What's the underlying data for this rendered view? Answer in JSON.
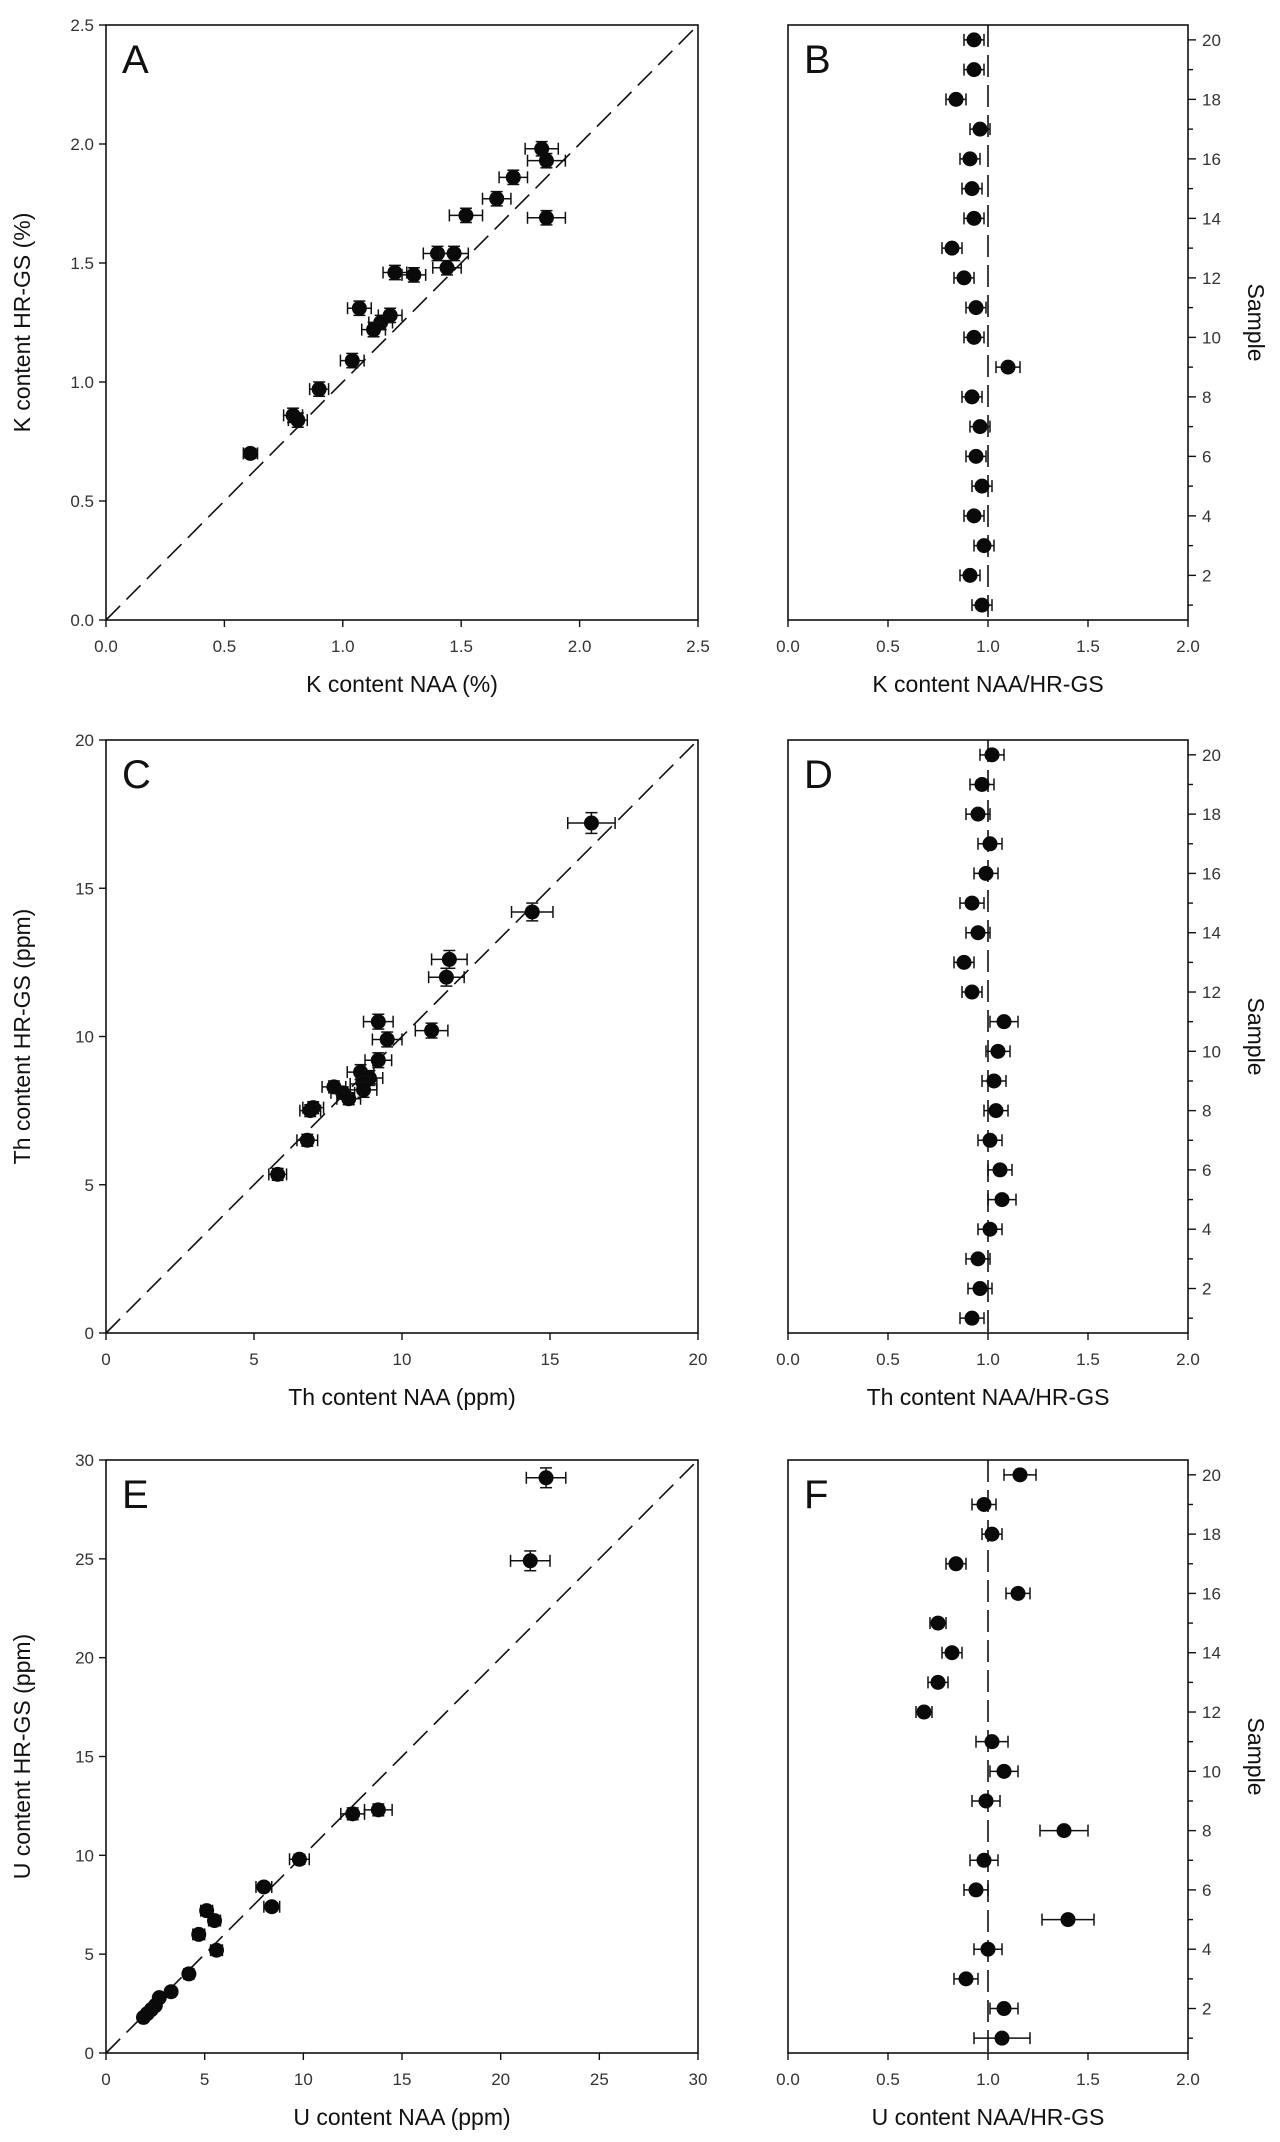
{
  "chart_data": [
    {
      "id": "A",
      "type": "scatter",
      "panel_label": "A",
      "xlabel": "K content NAA (%)",
      "ylabel": "K content HR-GS (%)",
      "xlim": [
        0,
        2.5
      ],
      "ylim": [
        0,
        2.5
      ],
      "xticks": [
        "0.0",
        "0.5",
        "1.0",
        "1.5",
        "2.0",
        "2.5"
      ],
      "yticks": [
        "0.0",
        "0.5",
        "1.0",
        "1.5",
        "2.0",
        "2.5"
      ],
      "reference_line": "1:1 dashed",
      "points": [
        {
          "x": 1.84,
          "y": 1.98,
          "xerr": 0.07,
          "yerr": 0.03
        },
        {
          "x": 1.86,
          "y": 1.93,
          "xerr": 0.08,
          "yerr": 0.03
        },
        {
          "x": 1.72,
          "y": 1.86,
          "xerr": 0.06,
          "yerr": 0.03
        },
        {
          "x": 1.65,
          "y": 1.77,
          "xerr": 0.06,
          "yerr": 0.03
        },
        {
          "x": 1.52,
          "y": 1.7,
          "xerr": 0.07,
          "yerr": 0.03
        },
        {
          "x": 1.86,
          "y": 1.69,
          "xerr": 0.08,
          "yerr": 0.03
        },
        {
          "x": 1.4,
          "y": 1.54,
          "xerr": 0.06,
          "yerr": 0.03
        },
        {
          "x": 1.47,
          "y": 1.54,
          "xerr": 0.06,
          "yerr": 0.03
        },
        {
          "x": 1.44,
          "y": 1.48,
          "xerr": 0.06,
          "yerr": 0.03
        },
        {
          "x": 1.22,
          "y": 1.46,
          "xerr": 0.05,
          "yerr": 0.03
        },
        {
          "x": 1.3,
          "y": 1.45,
          "xerr": 0.05,
          "yerr": 0.03
        },
        {
          "x": 1.07,
          "y": 1.31,
          "xerr": 0.05,
          "yerr": 0.03
        },
        {
          "x": 1.2,
          "y": 1.28,
          "xerr": 0.05,
          "yerr": 0.03
        },
        {
          "x": 1.16,
          "y": 1.25,
          "xerr": 0.05,
          "yerr": 0.03
        },
        {
          "x": 1.13,
          "y": 1.22,
          "xerr": 0.05,
          "yerr": 0.03
        },
        {
          "x": 1.04,
          "y": 1.09,
          "xerr": 0.05,
          "yerr": 0.03
        },
        {
          "x": 0.9,
          "y": 0.97,
          "xerr": 0.04,
          "yerr": 0.03
        },
        {
          "x": 0.79,
          "y": 0.86,
          "xerr": 0.04,
          "yerr": 0.03
        },
        {
          "x": 0.81,
          "y": 0.84,
          "xerr": 0.04,
          "yerr": 0.03
        },
        {
          "x": 0.61,
          "y": 0.7,
          "xerr": 0.03,
          "yerr": 0.02
        }
      ]
    },
    {
      "id": "B",
      "type": "scatter",
      "panel_label": "B",
      "xlabel": "K content NAA/HR-GS",
      "ylabel": "Sample",
      "xlim": [
        0,
        2.0
      ],
      "ylim": [
        0.5,
        20.5
      ],
      "xticks": [
        "0.0",
        "0.5",
        "1.0",
        "1.5",
        "2.0"
      ],
      "yticks": [
        "2",
        "4",
        "6",
        "8",
        "10",
        "12",
        "14",
        "16",
        "18",
        "20"
      ],
      "reference_line": "vertical dashed at 1.0",
      "points": [
        {
          "sample": 1,
          "ratio": 0.97,
          "err": 0.05
        },
        {
          "sample": 2,
          "ratio": 0.91,
          "err": 0.05
        },
        {
          "sample": 3,
          "ratio": 0.98,
          "err": 0.05
        },
        {
          "sample": 4,
          "ratio": 0.93,
          "err": 0.05
        },
        {
          "sample": 5,
          "ratio": 0.97,
          "err": 0.05
        },
        {
          "sample": 6,
          "ratio": 0.94,
          "err": 0.05
        },
        {
          "sample": 7,
          "ratio": 0.96,
          "err": 0.05
        },
        {
          "sample": 8,
          "ratio": 0.92,
          "err": 0.05
        },
        {
          "sample": 9,
          "ratio": 1.1,
          "err": 0.06
        },
        {
          "sample": 10,
          "ratio": 0.93,
          "err": 0.05
        },
        {
          "sample": 11,
          "ratio": 0.94,
          "err": 0.05
        },
        {
          "sample": 12,
          "ratio": 0.88,
          "err": 0.05
        },
        {
          "sample": 13,
          "ratio": 0.82,
          "err": 0.05
        },
        {
          "sample": 14,
          "ratio": 0.93,
          "err": 0.05
        },
        {
          "sample": 15,
          "ratio": 0.92,
          "err": 0.05
        },
        {
          "sample": 16,
          "ratio": 0.91,
          "err": 0.05
        },
        {
          "sample": 17,
          "ratio": 0.96,
          "err": 0.05
        },
        {
          "sample": 18,
          "ratio": 0.84,
          "err": 0.05
        },
        {
          "sample": 19,
          "ratio": 0.93,
          "err": 0.05
        },
        {
          "sample": 20,
          "ratio": 0.93,
          "err": 0.05
        }
      ]
    },
    {
      "id": "C",
      "type": "scatter",
      "panel_label": "C",
      "xlabel": "Th content NAA (ppm)",
      "ylabel": "Th content HR-GS (ppm)",
      "xlim": [
        0,
        20
      ],
      "ylim": [
        0,
        20
      ],
      "xticks": [
        "0",
        "5",
        "10",
        "15",
        "20"
      ],
      "yticks": [
        "0",
        "5",
        "10",
        "15",
        "20"
      ],
      "reference_line": "1:1 dashed",
      "points": [
        {
          "x": 16.4,
          "y": 17.2,
          "xerr": 0.8,
          "yerr": 0.35
        },
        {
          "x": 14.4,
          "y": 14.2,
          "xerr": 0.7,
          "yerr": 0.3
        },
        {
          "x": 11.6,
          "y": 12.6,
          "xerr": 0.6,
          "yerr": 0.3
        },
        {
          "x": 11.5,
          "y": 12.0,
          "xerr": 0.6,
          "yerr": 0.3
        },
        {
          "x": 9.2,
          "y": 10.5,
          "xerr": 0.5,
          "yerr": 0.25
        },
        {
          "x": 11.0,
          "y": 10.2,
          "xerr": 0.55,
          "yerr": 0.25
        },
        {
          "x": 9.5,
          "y": 9.9,
          "xerr": 0.5,
          "yerr": 0.25
        },
        {
          "x": 9.2,
          "y": 9.2,
          "xerr": 0.45,
          "yerr": 0.25
        },
        {
          "x": 8.6,
          "y": 8.8,
          "xerr": 0.45,
          "yerr": 0.25
        },
        {
          "x": 8.9,
          "y": 8.6,
          "xerr": 0.45,
          "yerr": 0.25
        },
        {
          "x": 8.7,
          "y": 8.4,
          "xerr": 0.45,
          "yerr": 0.25
        },
        {
          "x": 7.7,
          "y": 8.3,
          "xerr": 0.4,
          "yerr": 0.2
        },
        {
          "x": 8.0,
          "y": 8.1,
          "xerr": 0.4,
          "yerr": 0.2
        },
        {
          "x": 8.7,
          "y": 8.2,
          "xerr": 0.45,
          "yerr": 0.25
        },
        {
          "x": 8.2,
          "y": 7.9,
          "xerr": 0.4,
          "yerr": 0.2
        },
        {
          "x": 7.0,
          "y": 7.6,
          "xerr": 0.35,
          "yerr": 0.2
        },
        {
          "x": 6.9,
          "y": 7.5,
          "xerr": 0.35,
          "yerr": 0.2
        },
        {
          "x": 6.8,
          "y": 6.5,
          "xerr": 0.35,
          "yerr": 0.2
        },
        {
          "x": 5.8,
          "y": 5.35,
          "xerr": 0.3,
          "yerr": 0.2
        }
      ]
    },
    {
      "id": "D",
      "type": "scatter",
      "panel_label": "D",
      "xlabel": "Th content NAA/HR-GS",
      "ylabel": "Sample",
      "xlim": [
        0,
        2.0
      ],
      "ylim": [
        0.5,
        20.5
      ],
      "xticks": [
        "0.0",
        "0.5",
        "1.0",
        "1.5",
        "2.0"
      ],
      "yticks": [
        "2",
        "4",
        "6",
        "8",
        "10",
        "12",
        "14",
        "16",
        "18",
        "20"
      ],
      "reference_line": "vertical dashed at 1.0",
      "points": [
        {
          "sample": 1,
          "ratio": 0.92,
          "err": 0.06
        },
        {
          "sample": 2,
          "ratio": 0.96,
          "err": 0.06
        },
        {
          "sample": 3,
          "ratio": 0.95,
          "err": 0.06
        },
        {
          "sample": 4,
          "ratio": 1.01,
          "err": 0.06
        },
        {
          "sample": 5,
          "ratio": 1.07,
          "err": 0.07
        },
        {
          "sample": 6,
          "ratio": 1.06,
          "err": 0.06
        },
        {
          "sample": 7,
          "ratio": 1.01,
          "err": 0.06
        },
        {
          "sample": 8,
          "ratio": 1.04,
          "err": 0.06
        },
        {
          "sample": 9,
          "ratio": 1.03,
          "err": 0.06
        },
        {
          "sample": 10,
          "ratio": 1.05,
          "err": 0.06
        },
        {
          "sample": 11,
          "ratio": 1.08,
          "err": 0.07
        },
        {
          "sample": 12,
          "ratio": 0.92,
          "err": 0.05
        },
        {
          "sample": 13,
          "ratio": 0.88,
          "err": 0.05
        },
        {
          "sample": 14,
          "ratio": 0.95,
          "err": 0.06
        },
        {
          "sample": 15,
          "ratio": 0.92,
          "err": 0.06
        },
        {
          "sample": 16,
          "ratio": 0.99,
          "err": 0.06
        },
        {
          "sample": 17,
          "ratio": 1.01,
          "err": 0.06
        },
        {
          "sample": 18,
          "ratio": 0.95,
          "err": 0.06
        },
        {
          "sample": 19,
          "ratio": 0.97,
          "err": 0.06
        },
        {
          "sample": 20,
          "ratio": 1.02,
          "err": 0.06
        }
      ]
    },
    {
      "id": "E",
      "type": "scatter",
      "panel_label": "E",
      "xlabel": "U content NAA (ppm)",
      "ylabel": "U content HR-GS (ppm)",
      "xlim": [
        0,
        30
      ],
      "ylim": [
        0,
        30
      ],
      "xticks": [
        "0",
        "5",
        "10",
        "15",
        "20",
        "25",
        "30"
      ],
      "yticks": [
        "0",
        "5",
        "10",
        "15",
        "20",
        "25",
        "30"
      ],
      "reference_line": "1:1 dashed",
      "points": [
        {
          "x": 22.3,
          "y": 29.1,
          "xerr": 1.0,
          "yerr": 0.5
        },
        {
          "x": 21.5,
          "y": 24.9,
          "xerr": 1.0,
          "yerr": 0.5
        },
        {
          "x": 13.8,
          "y": 12.3,
          "xerr": 0.7,
          "yerr": 0.3
        },
        {
          "x": 12.5,
          "y": 12.1,
          "xerr": 0.6,
          "yerr": 0.3
        },
        {
          "x": 9.8,
          "y": 9.8,
          "xerr": 0.5,
          "yerr": 0.25
        },
        {
          "x": 8.0,
          "y": 8.4,
          "xerr": 0.4,
          "yerr": 0.2
        },
        {
          "x": 8.4,
          "y": 7.4,
          "xerr": 0.4,
          "yerr": 0.2
        },
        {
          "x": 5.1,
          "y": 7.2,
          "xerr": 0.3,
          "yerr": 0.2
        },
        {
          "x": 5.5,
          "y": 6.7,
          "xerr": 0.3,
          "yerr": 0.2
        },
        {
          "x": 4.7,
          "y": 6.0,
          "xerr": 0.3,
          "yerr": 0.2
        },
        {
          "x": 5.6,
          "y": 5.2,
          "xerr": 0.3,
          "yerr": 0.2
        },
        {
          "x": 4.2,
          "y": 4.0,
          "xerr": 0.25,
          "yerr": 0.15
        },
        {
          "x": 3.3,
          "y": 3.1,
          "xerr": 0.2,
          "yerr": 0.15
        },
        {
          "x": 2.5,
          "y": 2.4,
          "xerr": 0.2,
          "yerr": 0.1
        },
        {
          "x": 2.7,
          "y": 2.8,
          "xerr": 0.2,
          "yerr": 0.1
        },
        {
          "x": 2.1,
          "y": 2.0,
          "xerr": 0.15,
          "yerr": 0.1
        },
        {
          "x": 1.9,
          "y": 1.8,
          "xerr": 0.15,
          "yerr": 0.1
        },
        {
          "x": 2.3,
          "y": 2.2,
          "xerr": 0.15,
          "yerr": 0.1
        }
      ]
    },
    {
      "id": "F",
      "type": "scatter",
      "panel_label": "F",
      "xlabel": "U content NAA/HR-GS",
      "ylabel": "Sample",
      "xlim": [
        0,
        2.0
      ],
      "ylim": [
        0.5,
        20.5
      ],
      "xticks": [
        "0.0",
        "0.5",
        "1.0",
        "1.5",
        "2.0"
      ],
      "yticks": [
        "2",
        "4",
        "6",
        "8",
        "10",
        "12",
        "14",
        "16",
        "18",
        "20"
      ],
      "reference_line": "vertical dashed at 1.0",
      "points": [
        {
          "sample": 1,
          "ratio": 1.07,
          "err": 0.14
        },
        {
          "sample": 2,
          "ratio": 1.08,
          "err": 0.07
        },
        {
          "sample": 3,
          "ratio": 0.89,
          "err": 0.06
        },
        {
          "sample": 4,
          "ratio": 1.0,
          "err": 0.07
        },
        {
          "sample": 5,
          "ratio": 1.4,
          "err": 0.13
        },
        {
          "sample": 6,
          "ratio": 0.94,
          "err": 0.06
        },
        {
          "sample": 7,
          "ratio": 0.98,
          "err": 0.07
        },
        {
          "sample": 8,
          "ratio": 1.38,
          "err": 0.12
        },
        {
          "sample": 9,
          "ratio": 0.99,
          "err": 0.07
        },
        {
          "sample": 10,
          "ratio": 1.08,
          "err": 0.07
        },
        {
          "sample": 11,
          "ratio": 1.02,
          "err": 0.08
        },
        {
          "sample": 12,
          "ratio": 0.68,
          "err": 0.04
        },
        {
          "sample": 13,
          "ratio": 0.75,
          "err": 0.05
        },
        {
          "sample": 14,
          "ratio": 0.82,
          "err": 0.05
        },
        {
          "sample": 15,
          "ratio": 0.75,
          "err": 0.04
        },
        {
          "sample": 16,
          "ratio": 1.15,
          "err": 0.06
        },
        {
          "sample": 17,
          "ratio": 0.84,
          "err": 0.05
        },
        {
          "sample": 18,
          "ratio": 1.02,
          "err": 0.05
        },
        {
          "sample": 19,
          "ratio": 0.98,
          "err": 0.06
        },
        {
          "sample": 20,
          "ratio": 1.16,
          "err": 0.08
        }
      ]
    }
  ]
}
